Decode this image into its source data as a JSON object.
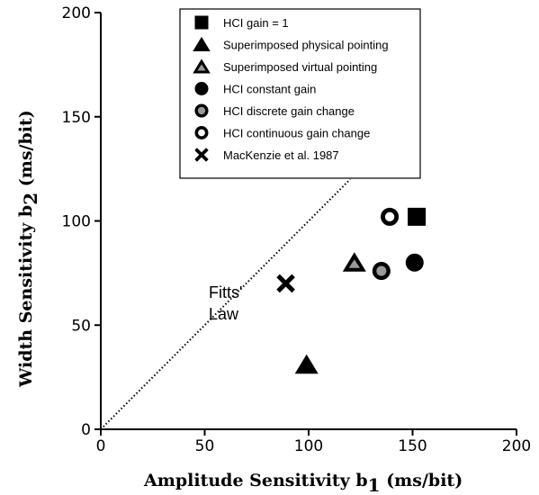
{
  "chart_data": {
    "type": "scatter",
    "xlabel": "Amplitude Sensitivity b1 (ms/bit)",
    "ylabel": "Width Sensitivity b2 (ms/bit)",
    "xlabel_parts": {
      "main": "Amplitude  Sensitivity  b",
      "sub": "1",
      "unit": "  (ms/bit)"
    },
    "ylabel_parts": {
      "main": "Width Sensitivity  b",
      "sub": "2",
      "unit": "  (ms/bit)"
    },
    "xlim": [
      0,
      200
    ],
    "ylim": [
      0,
      200
    ],
    "xticks": [
      0,
      50,
      100,
      150,
      200
    ],
    "yticks": [
      0,
      50,
      100,
      150,
      200
    ],
    "grid": false,
    "legend_position": "top-right",
    "series": [
      {
        "name": "HCI gain = 1",
        "marker": "filled-square",
        "points": [
          [
            152,
            102
          ]
        ]
      },
      {
        "name": "Superimposed physical pointing",
        "marker": "filled-triangle",
        "points": [
          [
            99,
            31
          ]
        ]
      },
      {
        "name": "Superimposed virtual pointing",
        "marker": "shaded-triangle",
        "points": [
          [
            122,
            80
          ]
        ]
      },
      {
        "name": "HCI constant gain",
        "marker": "filled-circle",
        "points": [
          [
            151,
            80
          ]
        ]
      },
      {
        "name": "HCI discrete gain change",
        "marker": "shaded-circle",
        "points": [
          [
            135,
            76
          ]
        ]
      },
      {
        "name": "HCI continuous gain change",
        "marker": "open-circle",
        "points": [
          [
            139,
            102
          ]
        ]
      },
      {
        "name": "MacKenzie et al. 1987",
        "marker": "x-cross",
        "points": [
          [
            89,
            70
          ]
        ]
      }
    ],
    "reference_line": {
      "label_line1": "Fitts'",
      "label_line2": "Law",
      "points": [
        [
          0,
          0
        ],
        [
          120,
          120
        ]
      ],
      "style": "dotted"
    }
  }
}
